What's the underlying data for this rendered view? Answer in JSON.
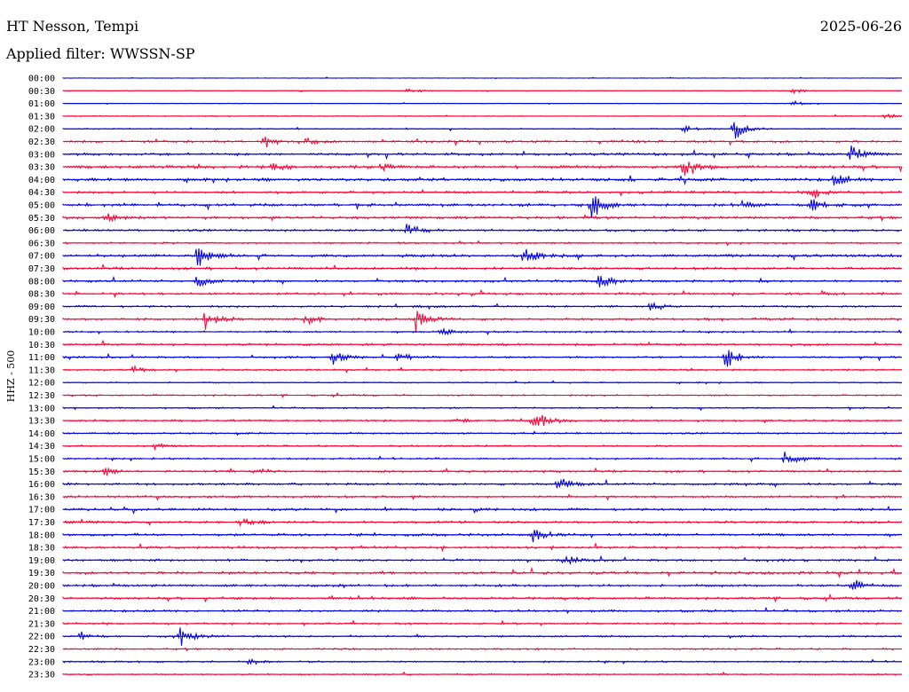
{
  "header": {
    "station": "HT Nesson, Tempi",
    "date": "2025-06-26",
    "filter": "Applied filter: WWSSN-SP"
  },
  "chart_data": {
    "type": "helicorder",
    "title": "HT Nesson, Tempi",
    "ylabel": "HHZ - 500",
    "colors": [
      "#0000e6",
      "#ff0033"
    ],
    "rows": [
      "00:00",
      "00:30",
      "01:00",
      "01:30",
      "02:00",
      "02:30",
      "03:00",
      "03:30",
      "04:00",
      "04:30",
      "05:00",
      "05:30",
      "06:00",
      "06:30",
      "07:00",
      "07:30",
      "08:00",
      "08:30",
      "09:00",
      "09:30",
      "10:00",
      "10:30",
      "11:00",
      "11:30",
      "12:00",
      "12:30",
      "13:00",
      "13:30",
      "14:00",
      "14:30",
      "15:00",
      "15:30",
      "16:00",
      "16:30",
      "17:00",
      "17:30",
      "18:00",
      "18:30",
      "19:00",
      "19:30",
      "20:00",
      "20:30",
      "21:00",
      "21:30",
      "22:00",
      "22:30",
      "23:00",
      "23:30"
    ],
    "noise_levels": [
      0.3,
      0.4,
      0.3,
      0.5,
      0.6,
      1.2,
      1.4,
      1.6,
      1.6,
      1.3,
      1.6,
      1.4,
      1.2,
      1.0,
      1.5,
      1.3,
      1.2,
      1.2,
      1.1,
      1.2,
      1.0,
      1.2,
      1.0,
      0.9,
      0.7,
      0.8,
      0.8,
      1.1,
      0.9,
      0.9,
      1.0,
      1.1,
      1.2,
      1.1,
      1.3,
      1.2,
      1.4,
      1.3,
      1.2,
      1.5,
      1.3,
      1.3,
      1.2,
      1.1,
      1.0,
      0.9,
      0.9,
      0.8
    ],
    "events": [
      {
        "row": 1,
        "t": 0.41,
        "amp": 3
      },
      {
        "row": 1,
        "t": 0.87,
        "amp": 3
      },
      {
        "row": 2,
        "t": 0.87,
        "amp": 3
      },
      {
        "row": 3,
        "t": 0.98,
        "amp": 3
      },
      {
        "row": 4,
        "t": 0.8,
        "amp": 14
      },
      {
        "row": 4,
        "t": 0.74,
        "amp": 4
      },
      {
        "row": 5,
        "t": 0.24,
        "amp": 7
      },
      {
        "row": 5,
        "t": 0.29,
        "amp": 4
      },
      {
        "row": 6,
        "t": 0.94,
        "amp": 11
      },
      {
        "row": 7,
        "t": 0.74,
        "amp": 15
      },
      {
        "row": 7,
        "t": 0.25,
        "amp": 6
      },
      {
        "row": 7,
        "t": 0.38,
        "amp": 4
      },
      {
        "row": 8,
        "t": 0.92,
        "amp": 9
      },
      {
        "row": 9,
        "t": 0.89,
        "amp": 11
      },
      {
        "row": 10,
        "t": 0.63,
        "amp": 17
      },
      {
        "row": 10,
        "t": 0.89,
        "amp": 12
      },
      {
        "row": 10,
        "t": 0.81,
        "amp": 5
      },
      {
        "row": 11,
        "t": 0.05,
        "amp": 5
      },
      {
        "row": 12,
        "t": 0.41,
        "amp": 8
      },
      {
        "row": 14,
        "t": 0.16,
        "amp": 15
      },
      {
        "row": 14,
        "t": 0.55,
        "amp": 13
      },
      {
        "row": 16,
        "t": 0.16,
        "amp": 8
      },
      {
        "row": 16,
        "t": 0.64,
        "amp": 10
      },
      {
        "row": 18,
        "t": 0.7,
        "amp": 6
      },
      {
        "row": 19,
        "t": 0.17,
        "amp": 12
      },
      {
        "row": 19,
        "t": 0.42,
        "amp": 15
      },
      {
        "row": 19,
        "t": 0.29,
        "amp": 7
      },
      {
        "row": 20,
        "t": 0.45,
        "amp": 5
      },
      {
        "row": 22,
        "t": 0.32,
        "amp": 10
      },
      {
        "row": 22,
        "t": 0.4,
        "amp": 7
      },
      {
        "row": 22,
        "t": 0.79,
        "amp": 13
      },
      {
        "row": 23,
        "t": 0.08,
        "amp": 5
      },
      {
        "row": 27,
        "t": 0.56,
        "amp": 16
      },
      {
        "row": 27,
        "t": 0.47,
        "amp": 4
      },
      {
        "row": 29,
        "t": 0.11,
        "amp": 4
      },
      {
        "row": 30,
        "t": 0.86,
        "amp": 11
      },
      {
        "row": 31,
        "t": 0.05,
        "amp": 5
      },
      {
        "row": 31,
        "t": 0.23,
        "amp": 4
      },
      {
        "row": 32,
        "t": 0.59,
        "amp": 10
      },
      {
        "row": 35,
        "t": 0.21,
        "amp": 7
      },
      {
        "row": 36,
        "t": 0.56,
        "amp": 9
      },
      {
        "row": 38,
        "t": 0.6,
        "amp": 5
      },
      {
        "row": 40,
        "t": 0.94,
        "amp": 8
      },
      {
        "row": 44,
        "t": 0.02,
        "amp": 6
      },
      {
        "row": 44,
        "t": 0.14,
        "amp": 12
      },
      {
        "row": 46,
        "t": 0.22,
        "amp": 4
      }
    ]
  }
}
